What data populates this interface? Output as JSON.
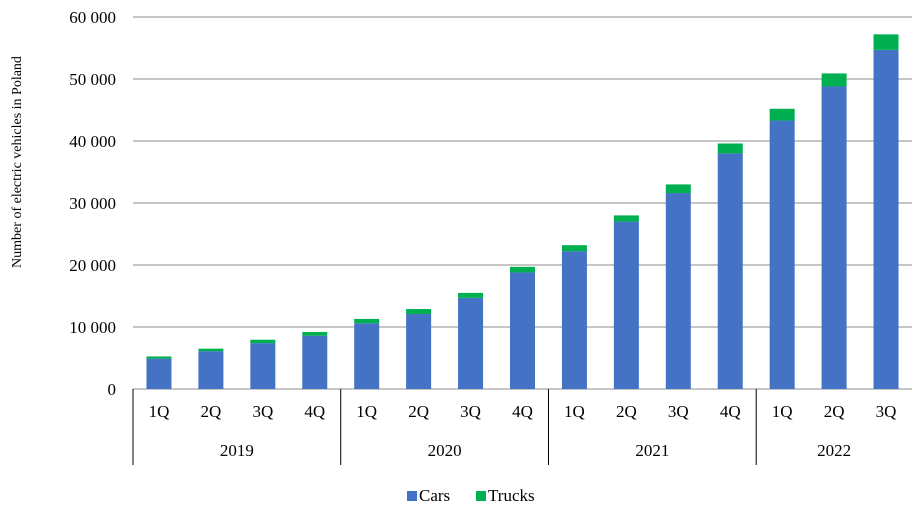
{
  "chart_data": {
    "type": "bar",
    "stacked": true,
    "ylabel": "Number of electric vehicles in Poland",
    "ylim": [
      0,
      60000
    ],
    "y_ticks": [
      0,
      10000,
      20000,
      30000,
      40000,
      50000,
      60000
    ],
    "y_tick_labels": [
      "0",
      "10 000",
      "20 000",
      "30 000",
      "40 000",
      "50 000",
      "60 000"
    ],
    "grid": true,
    "legend": "bottom",
    "categories": [
      "1Q",
      "2Q",
      "3Q",
      "4Q",
      "1Q",
      "2Q",
      "3Q",
      "4Q",
      "1Q",
      "2Q",
      "3Q",
      "4Q",
      "1Q",
      "2Q",
      "3Q"
    ],
    "groups": [
      {
        "label": "2019",
        "count": 4
      },
      {
        "label": "2020",
        "count": 4
      },
      {
        "label": "2021",
        "count": 4
      },
      {
        "label": "2022",
        "count": 3
      }
    ],
    "series": [
      {
        "name": "Cars",
        "color": "#4472C4",
        "values": [
          4900,
          6100,
          7400,
          8600,
          10600,
          12100,
          14700,
          18800,
          22200,
          27000,
          31600,
          38000,
          43300,
          48800,
          54700
        ]
      },
      {
        "name": "Trucks",
        "color": "#00B050",
        "values": [
          350,
          400,
          550,
          600,
          700,
          800,
          800,
          900,
          1000,
          1000,
          1400,
          1600,
          1900,
          2100,
          2500
        ]
      }
    ]
  }
}
